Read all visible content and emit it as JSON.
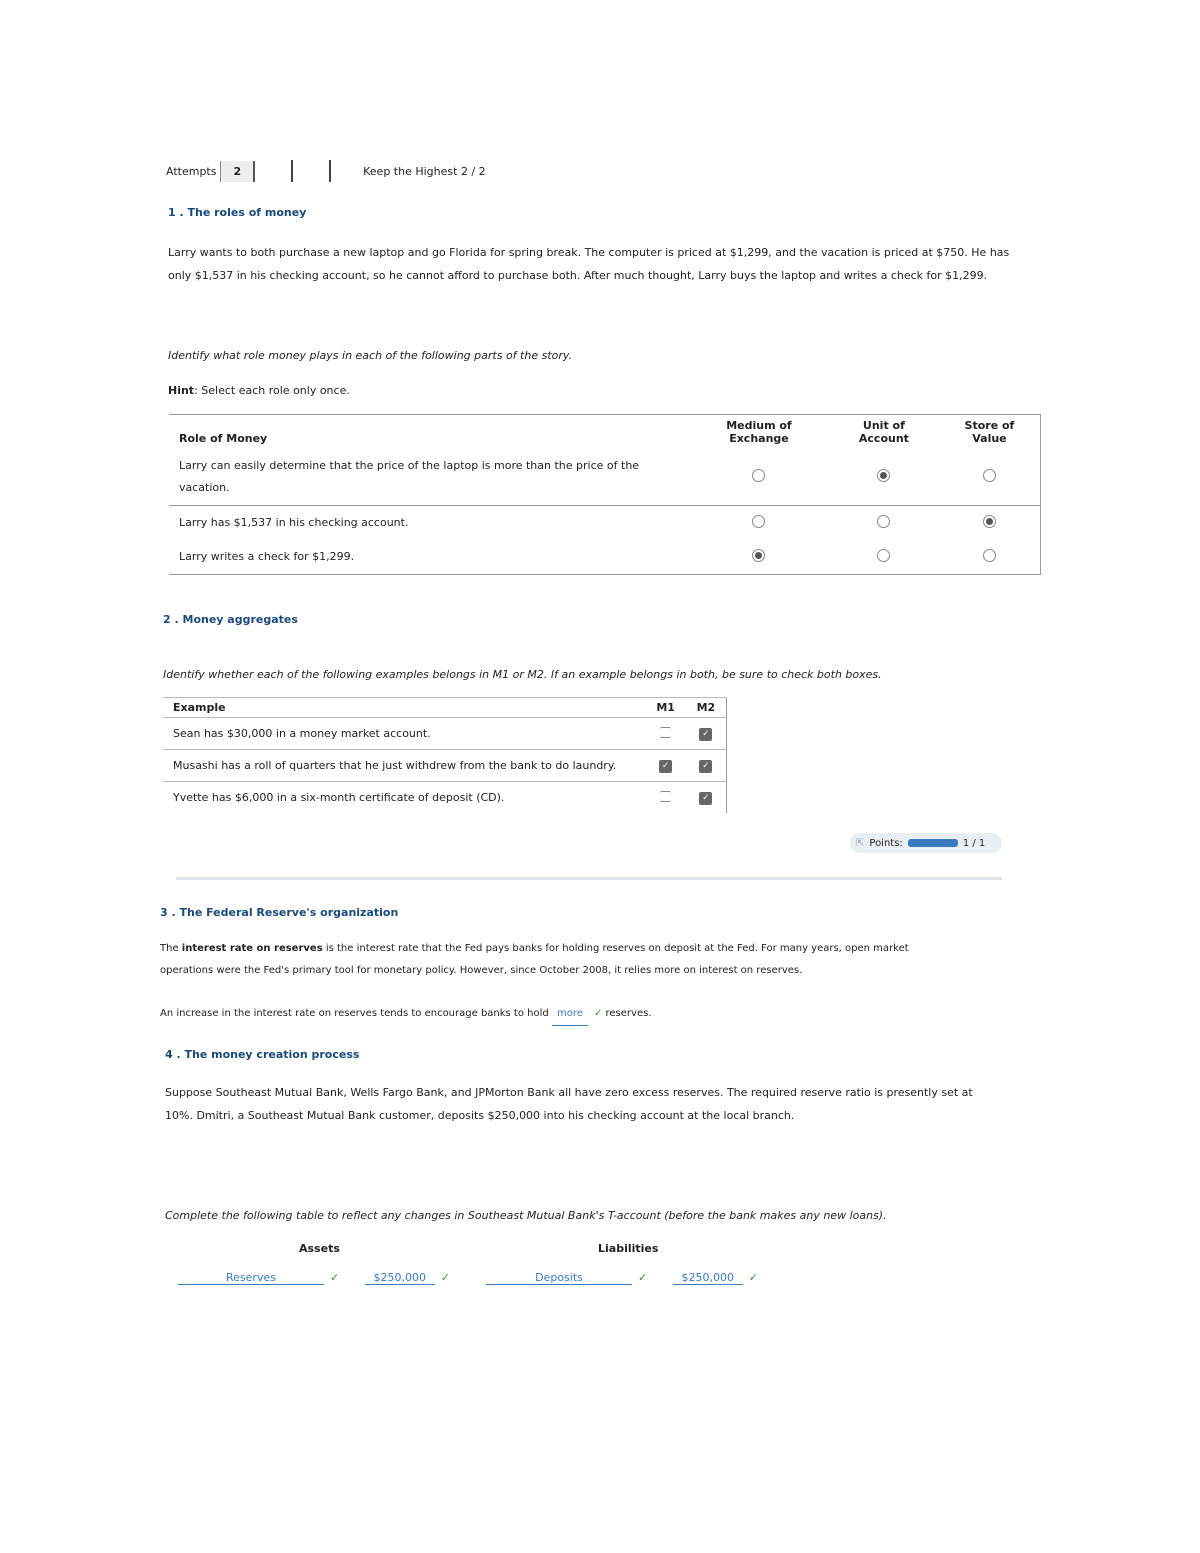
{
  "attempts": {
    "label": "Attempts",
    "value": "2",
    "keep": "Keep the Highest 2 / 2"
  },
  "q1": {
    "title": "1 . The roles of money",
    "story": "Larry wants to both purchase a new laptop and go Florida for spring break. The computer is priced at $1,299, and the vacation is priced at $750. He has only $1,537 in his checking account, so he cannot afford to purchase both. After much thought, Larry buys the laptop and writes a check for $1,299.",
    "instruction": "Identify what role money plays in each of the following parts of the story.",
    "hint_label": "Hint",
    "hint": ": Select each role only once.",
    "headers": [
      "Role of Money",
      "Medium of Exchange",
      "Unit of Account",
      "Store of Value"
    ],
    "rows": [
      {
        "text": "Larry can easily determine that the price of the laptop is more than the price of the vacation.",
        "selected": 1
      },
      {
        "text": "Larry has $1,537 in his checking account.",
        "selected": 2
      },
      {
        "text": "Larry writes a check for $1,299.",
        "selected": 0
      }
    ]
  },
  "q2": {
    "title": "2 . Money aggregates",
    "instruction": "Identify whether each of the following examples belongs in M1 or M2. If an example belongs in both, be sure to check both boxes.",
    "headers": [
      "Example",
      "M1",
      "M2"
    ],
    "rows": [
      {
        "text": "Sean has $30,000 in a money market account.",
        "m1": false,
        "m2": true
      },
      {
        "text": "Musashi has a roll of quarters that he just withdrew from the bank to do laundry.",
        "m1": true,
        "m2": true
      },
      {
        "text": "Yvette has $6,000 in a six-month certificate of deposit (CD).",
        "m1": false,
        "m2": true
      }
    ],
    "points_label": "Points:",
    "points": "1 / 1",
    "points_fraction": 1
  },
  "q3": {
    "title": "3 . The Federal Reserve's organization",
    "bold_term": "interest rate on reserves",
    "text_before": "The ",
    "text_after": " is the interest rate that the Fed pays banks for holding reserves on deposit at the Fed. For many years, open market operations were the Fed's primary tool for monetary policy. However, since October 2008, it relies more on interest on reserves.",
    "question_before": "An increase in the interest rate on reserves tends to encourage banks to hold",
    "answer": "more",
    "question_after": "reserves."
  },
  "q4": {
    "title": "4 . The money creation process",
    "text": "Suppose Southeast Mutual Bank, Wells Fargo Bank, and JPMorton Bank all have zero excess reserves. The required reserve ratio is presently set at 10%. Dmitri, a Southeast Mutual Bank customer, deposits $250,000 into his checking account at the local branch.",
    "instruction": "Complete the following table to reflect any changes in Southeast Mutual Bank's T-account (before the bank makes any new loans).",
    "assets_label": "Assets",
    "liabilities_label": "Liabilities",
    "assets_item": "Reserves",
    "assets_value": "$250,000",
    "liab_item": "Deposits",
    "liab_value": "$250,000"
  },
  "colors": {
    "heading": "#1a4a7a",
    "correct": "#2a9a2a",
    "answer": "#3a7bbf"
  }
}
